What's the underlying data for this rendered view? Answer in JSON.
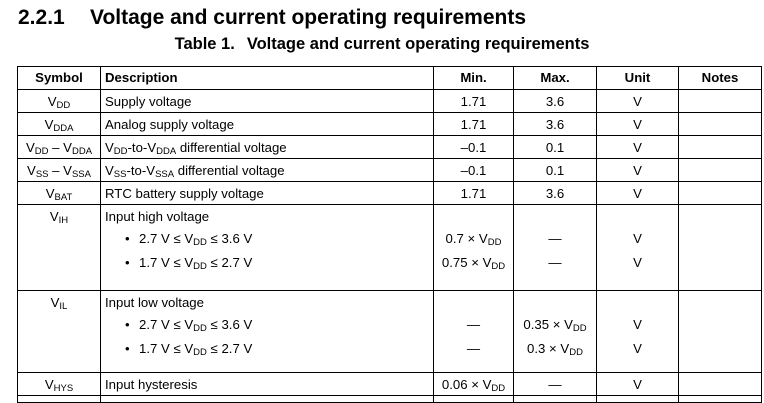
{
  "section": {
    "number": "2.2.1",
    "title": "Voltage and current operating requirements"
  },
  "table": {
    "caption_label": "Table 1.",
    "caption_title": "Voltage and current operating requirements",
    "headers": {
      "symbol": "Symbol",
      "description": "Description",
      "min": "Min.",
      "max": "Max.",
      "unit": "Unit",
      "notes": "Notes"
    },
    "rows": [
      {
        "sym": "V",
        "sub": "DD",
        "desc": "Supply voltage",
        "min": "1.71",
        "max": "3.6",
        "unit": "V"
      },
      {
        "sym": "V",
        "sub": "DDA",
        "desc": "Analog supply voltage",
        "min": "1.71",
        "max": "3.6",
        "unit": "V"
      },
      {
        "sym": "V",
        "sub": "DD",
        "sym2": " – V",
        "sub2": "DDA",
        "d1": "V",
        "ds1": "DD",
        "d2": "-to-V",
        "ds2": "DDA",
        "d3": " differential voltage",
        "min": "–0.1",
        "max": "0.1",
        "unit": "V"
      },
      {
        "sym": "V",
        "sub": "SS",
        "sym2": " – V",
        "sub2": "SSA",
        "d1": "V",
        "ds1": "SS",
        "d2": "-to-V",
        "ds2": "SSA",
        "d3": " differential voltage",
        "min": "–0.1",
        "max": "0.1",
        "unit": "V"
      },
      {
        "sym": "V",
        "sub": "BAT",
        "desc": "RTC battery supply voltage",
        "min": "1.71",
        "max": "3.6",
        "unit": "V"
      }
    ],
    "vih": {
      "sym": "V",
      "sub": "IH",
      "desc": "Input high voltage",
      "bullets": [
        {
          "a": "2.7 V ≤ V",
          "s": "DD",
          "b": " ≤ 3.6 V",
          "min": "0.7 × V",
          "min_sub": "DD",
          "max": "—",
          "unit": "V"
        },
        {
          "a": "1.7 V ≤ V",
          "s": "DD",
          "b": " ≤ 2.7 V",
          "min": "0.75 × V",
          "min_sub": "DD",
          "max": "—",
          "unit": "V"
        }
      ]
    },
    "vil": {
      "sym": "V",
      "sub": "IL",
      "desc": "Input low voltage",
      "bullets": [
        {
          "a": "2.7 V ≤ V",
          "s": "DD",
          "b": " ≤ 3.6 V",
          "min": "—",
          "max": "0.35 × V",
          "max_sub": "DD",
          "unit": "V"
        },
        {
          "a": "1.7 V ≤ V",
          "s": "DD",
          "b": " ≤ 2.7 V",
          "min": "—",
          "max": "0.3 × V",
          "max_sub": "DD",
          "unit": "V"
        }
      ]
    },
    "vhys": {
      "sym": "V",
      "sub": "HYS",
      "desc": "Input hysteresis",
      "min": "0.06 × V",
      "min_sub": "DD",
      "max": "—",
      "unit": "V"
    },
    "bullet_char": "•"
  }
}
